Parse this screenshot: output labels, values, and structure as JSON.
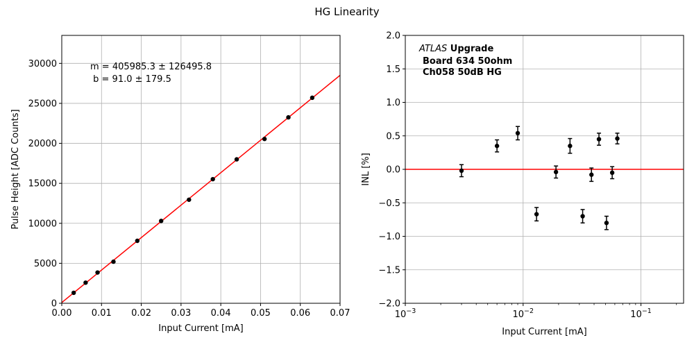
{
  "figure": {
    "title": "HG Linearity"
  },
  "chart_data": [
    {
      "type": "scatter",
      "xlabel": "Input Current [mA]",
      "ylabel": "Pulse Height [ADC Counts]",
      "xlim": [
        0,
        0.07
      ],
      "ylim": [
        0,
        33500
      ],
      "xticks": [
        0.0,
        0.01,
        0.02,
        0.03,
        0.04,
        0.05,
        0.06,
        0.07
      ],
      "xtick_labels": [
        "0.00",
        "0.01",
        "0.02",
        "0.03",
        "0.04",
        "0.05",
        "0.06",
        "0.07"
      ],
      "yticks": [
        0,
        5000,
        10000,
        15000,
        20000,
        25000,
        30000
      ],
      "ytick_labels": [
        "0",
        "5000",
        "10000",
        "15000",
        "20000",
        "25000",
        "30000"
      ],
      "grid": true,
      "series": [
        {
          "x": [
            0.003,
            0.006,
            0.009,
            0.013,
            0.019,
            0.025,
            0.032,
            0.038,
            0.044,
            0.051,
            0.057,
            0.063
          ],
          "y": [
            1310,
            2580,
            3850,
            5200,
            7810,
            10300,
            12950,
            15520,
            18000,
            20550,
            23250,
            25700
          ],
          "color": "#000000",
          "marker": "circle"
        }
      ],
      "fit_line": {
        "slope": 405985.3,
        "intercept": 91.0,
        "color": "#ff0000"
      },
      "annotation": [
        "m = 405985.3 ± 126495.8",
        " b = 91.0 ± 179.5"
      ]
    },
    {
      "type": "scatter",
      "xlabel": "Input Current [mA]",
      "ylabel": "INL [%]",
      "xscale": "log",
      "xlim": [
        0.001,
        0.23
      ],
      "ylim": [
        -2.0,
        2.0
      ],
      "xticks": [
        0.001,
        0.01,
        0.1
      ],
      "xtick_labels": [
        {
          "base": "10",
          "exp": "−3"
        },
        {
          "base": "10",
          "exp": "−2"
        },
        {
          "base": "10",
          "exp": "−1"
        }
      ],
      "yticks": [
        -2.0,
        -1.5,
        -1.0,
        -0.5,
        0.0,
        0.5,
        1.0,
        1.5,
        2.0
      ],
      "ytick_labels": [
        "−2.0",
        "−1.5",
        "−1.0",
        "−0.5",
        "0.0",
        "0.5",
        "1.0",
        "1.5",
        "2.0"
      ],
      "grid": true,
      "series": [
        {
          "x": [
            0.003,
            0.006,
            0.009,
            0.013,
            0.019,
            0.025,
            0.032,
            0.038,
            0.044,
            0.051,
            0.057,
            0.063
          ],
          "y": [
            -0.02,
            0.35,
            0.54,
            -0.67,
            -0.04,
            0.35,
            -0.7,
            -0.08,
            0.45,
            -0.8,
            -0.05,
            0.46
          ],
          "yerr": [
            0.09,
            0.09,
            0.1,
            0.1,
            0.09,
            0.11,
            0.1,
            0.1,
            0.09,
            0.1,
            0.09,
            0.08
          ],
          "color": "#000000",
          "marker": "circle"
        }
      ],
      "reference_line": {
        "y": 0.0,
        "color": "#ff0000"
      },
      "annotation": {
        "italic": "ATLAS",
        "bold_first": " Upgrade",
        "lines": [
          "Board 634 50ohm",
          "Ch058 50dB HG"
        ]
      }
    }
  ]
}
